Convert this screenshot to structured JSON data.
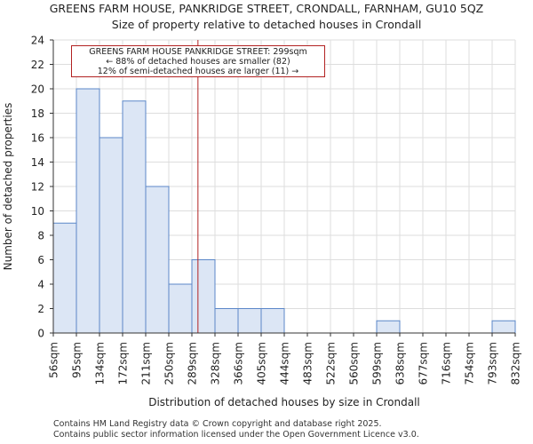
{
  "chart_data": {
    "type": "bar",
    "title": "GREENS FARM HOUSE, PANKRIDGE STREET, CRONDALL, FARNHAM, GU10 5QZ",
    "subtitle": "Size of property relative to detached houses in Crondall",
    "xlabel": "Distribution of detached houses by size in Crondall",
    "ylabel": "Number of detached properties",
    "ylim": [
      0,
      24
    ],
    "yticks": [
      0,
      2,
      4,
      6,
      8,
      10,
      12,
      14,
      16,
      18,
      20,
      22,
      24
    ],
    "categories": [
      "56sqm",
      "95sqm",
      "134sqm",
      "172sqm",
      "211sqm",
      "250sqm",
      "289sqm",
      "328sqm",
      "366sqm",
      "405sqm",
      "444sqm",
      "483sqm",
      "522sqm",
      "560sqm",
      "599sqm",
      "638sqm",
      "677sqm",
      "716sqm",
      "754sqm",
      "793sqm",
      "832sqm"
    ],
    "values": [
      9,
      20,
      16,
      19,
      12,
      4,
      6,
      2,
      2,
      2,
      0,
      0,
      0,
      0,
      1,
      0,
      0,
      0,
      0,
      1,
      0
    ],
    "marker_value": 299,
    "bar_color": "#dce6f5",
    "bar_edge": "#5b87c8",
    "marker_color": "#b22222",
    "annotation": {
      "line1": "GREENS FARM HOUSE PANKRIDGE STREET: 299sqm",
      "line2": "← 88% of detached houses are smaller (82)",
      "line3": "12% of semi-detached houses are larger (11) →"
    }
  },
  "footer": {
    "line1": "Contains HM Land Registry data © Crown copyright and database right 2025.",
    "line2": "Contains public sector information licensed under the Open Government Licence v3.0."
  }
}
